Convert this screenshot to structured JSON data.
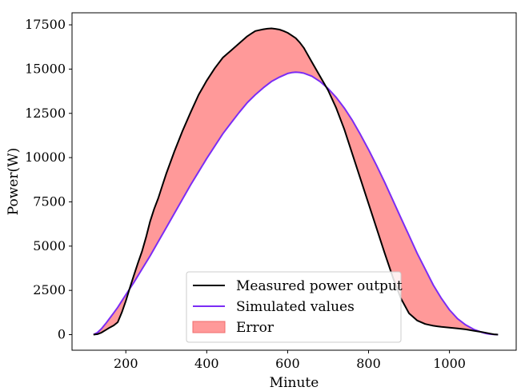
{
  "chart_data": {
    "type": "line",
    "title": "",
    "xlabel": "Minute",
    "ylabel": "Power(W)",
    "xlim": [
      67,
      1165
    ],
    "ylim": [
      -880,
      18180
    ],
    "xticks": [
      200,
      400,
      600,
      800,
      1000
    ],
    "yticks": [
      0,
      2500,
      5000,
      7500,
      10000,
      12500,
      15000,
      17500
    ],
    "grid": false,
    "legend_position": "lower-center",
    "series": [
      {
        "name": "Measured power output",
        "color": "#000000",
        "x": [
          120,
          130,
          140,
          150,
          160,
          170,
          180,
          190,
          200,
          210,
          220,
          230,
          240,
          250,
          260,
          270,
          280,
          290,
          300,
          320,
          340,
          360,
          380,
          400,
          420,
          440,
          460,
          480,
          500,
          510,
          520,
          530,
          540,
          550,
          560,
          570,
          580,
          590,
          600,
          610,
          620,
          630,
          640,
          660,
          680,
          700,
          720,
          740,
          760,
          780,
          800,
          820,
          840,
          860,
          880,
          900,
          920,
          940,
          950,
          960,
          970,
          980,
          990,
          1000,
          1020,
          1040,
          1060,
          1080,
          1100,
          1110,
          1120
        ],
        "y": [
          0,
          30,
          120,
          260,
          400,
          520,
          700,
          1250,
          1900,
          2650,
          3350,
          4050,
          4700,
          5500,
          6400,
          7100,
          7700,
          8400,
          9100,
          10350,
          11500,
          12550,
          13550,
          14350,
          15050,
          15650,
          16050,
          16450,
          16850,
          17000,
          17150,
          17200,
          17250,
          17280,
          17300,
          17270,
          17230,
          17150,
          17050,
          16900,
          16750,
          16500,
          16200,
          15400,
          14600,
          13800,
          12800,
          11600,
          10200,
          8800,
          7400,
          6000,
          4600,
          3250,
          2050,
          1200,
          800,
          600,
          550,
          500,
          470,
          440,
          420,
          400,
          350,
          300,
          220,
          150,
          60,
          20,
          0
        ]
      },
      {
        "name": "Simulated values",
        "color": "#7b2cf5",
        "x": [
          120,
          130,
          140,
          150,
          160,
          170,
          180,
          190,
          200,
          220,
          240,
          260,
          280,
          300,
          320,
          340,
          360,
          380,
          400,
          420,
          440,
          460,
          480,
          500,
          520,
          540,
          560,
          580,
          600,
          610,
          620,
          630,
          640,
          660,
          680,
          700,
          720,
          740,
          760,
          780,
          800,
          820,
          840,
          860,
          880,
          900,
          920,
          940,
          960,
          980,
          1000,
          1020,
          1040,
          1060,
          1080,
          1090,
          1100,
          1110,
          1120
        ],
        "y": [
          0,
          120,
          340,
          620,
          920,
          1230,
          1540,
          1900,
          2250,
          2950,
          3700,
          4450,
          5250,
          6050,
          6850,
          7650,
          8450,
          9200,
          9950,
          10650,
          11350,
          11950,
          12550,
          13100,
          13550,
          13950,
          14300,
          14550,
          14750,
          14800,
          14830,
          14810,
          14770,
          14600,
          14300,
          13900,
          13400,
          12800,
          12100,
          11300,
          10450,
          9550,
          8600,
          7600,
          6600,
          5600,
          4600,
          3700,
          2800,
          2050,
          1400,
          900,
          550,
          300,
          130,
          70,
          30,
          10,
          0
        ]
      }
    ],
    "fill": {
      "name": "Error",
      "between": [
        "Measured power output",
        "Simulated values"
      ],
      "color": "#ff9999"
    }
  }
}
